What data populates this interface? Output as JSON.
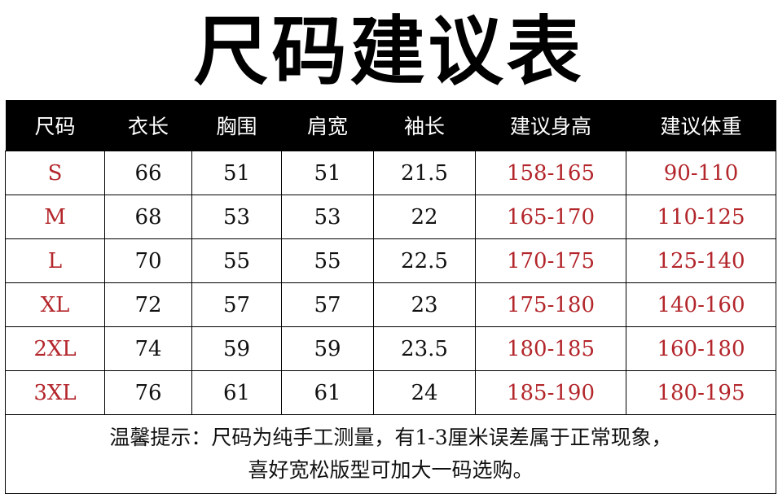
{
  "title": "尺码建议表",
  "colors": {
    "header_bg": "#000000",
    "accent_red": "#b3262b"
  },
  "table": {
    "headers": [
      "尺码",
      "衣长",
      "胸围",
      "肩宽",
      "袖长",
      "建议身高",
      "建议体重"
    ],
    "rows": [
      [
        "S",
        "66",
        "51",
        "51",
        "21.5",
        "158-165",
        "90-110"
      ],
      [
        "M",
        "68",
        "53",
        "53",
        "22",
        "165-170",
        "110-125"
      ],
      [
        "L",
        "70",
        "55",
        "55",
        "22.5",
        "170-175",
        "125-140"
      ],
      [
        "XL",
        "72",
        "57",
        "57",
        "23",
        "175-180",
        "140-160"
      ],
      [
        "2XL",
        "74",
        "59",
        "59",
        "23.5",
        "180-185",
        "160-180"
      ],
      [
        "3XL",
        "76",
        "61",
        "61",
        "24",
        "185-190",
        "180-195"
      ]
    ]
  },
  "note": {
    "line1": "温馨提示：尺码为纯手工测量，有1-3厘米误差属于正常现象，",
    "line2": "喜好宽松版型可加大一码选购。"
  }
}
